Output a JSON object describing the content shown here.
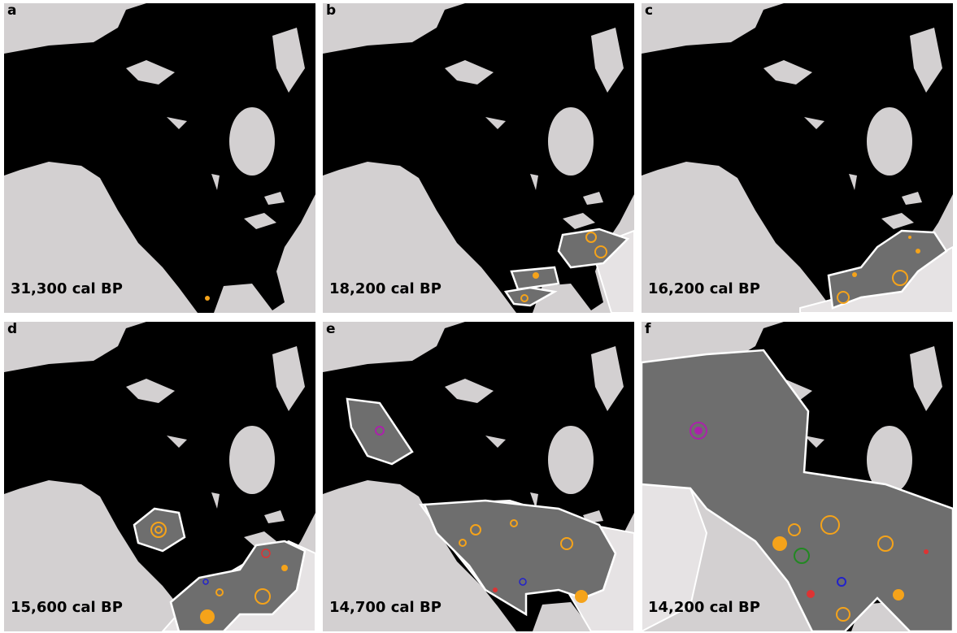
{
  "panels": [
    {
      "label": "a",
      "date": "31,300 cal BP"
    },
    {
      "label": "b",
      "date": "18,200 cal BP"
    },
    {
      "label": "c",
      "date": "16,200 cal BP"
    },
    {
      "label": "d",
      "date": "15,600 cal BP"
    },
    {
      "label": "e",
      "date": "14,700 cal BP"
    },
    {
      "label": "f",
      "date": "14,200 cal BP"
    }
  ]
}
